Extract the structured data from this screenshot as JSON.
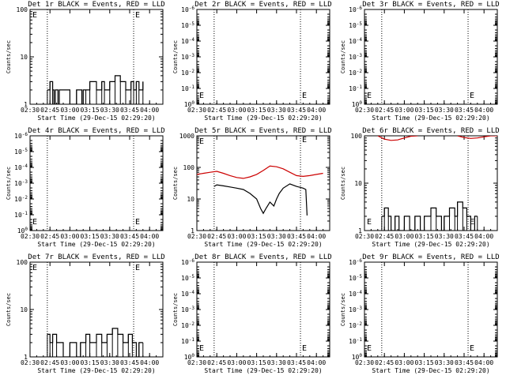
{
  "window_title": "",
  "axis_label_y": "Counts/sec",
  "axis_label_x": "Start Time (29-Dec-15 02:29:20)",
  "colors": {
    "events": "#000000",
    "lld": "#cc0000",
    "background": "#ffffff"
  },
  "chart_data": [
    {
      "type": "line",
      "title": "Det 1r BLACK = Events, RED = LLD",
      "xlabel": "Start Time (29-Dec-15 02:29:20)",
      "ylabel": "Counts/sec",
      "xlim": [
        "02:30",
        "04:10"
      ],
      "ylim": [
        1,
        100
      ],
      "yscale": "log",
      "x_ticks": [
        "02:30",
        "02:45",
        "03:00",
        "03:15",
        "03:30",
        "03:45",
        "04:00"
      ],
      "y_ticks": [
        "1",
        "10",
        "100"
      ],
      "markers": [
        "02:43",
        "03:48"
      ],
      "marker_label": "E",
      "series": [
        {
          "color": "#000000",
          "style": "step",
          "x": [
            "02:43",
            "02:45",
            "02:47",
            "02:48",
            "02:49",
            "02:51",
            "02:52",
            "03:00",
            "03:05",
            "03:09",
            "03:10",
            "03:12",
            "03:15",
            "03:20",
            "03:24",
            "03:26",
            "03:30",
            "03:34",
            "03:38",
            "03:42",
            "03:46",
            "03:48",
            "03:50",
            "03:52",
            "03:55"
          ],
          "y": [
            2,
            3,
            2,
            1,
            2,
            1,
            2,
            1,
            2,
            1,
            2,
            2,
            3,
            2,
            3,
            2,
            3,
            4,
            3,
            2,
            3,
            2,
            3,
            2,
            3
          ]
        }
      ]
    },
    {
      "type": "line",
      "title": "Det 2r BLACK = Events, RED = LLD",
      "xlabel": "Start Time (29-Dec-15 02:29:20)",
      "ylabel": "Counts/sec",
      "xlim": [
        "02:30",
        "04:10"
      ],
      "ylim": [
        1,
        1e-06
      ],
      "yscale": "log",
      "x_ticks": [
        "02:30",
        "02:45",
        "03:00",
        "03:15",
        "03:30",
        "03:45",
        "04:00"
      ],
      "y_ticks": [
        "10^0",
        "10^-1",
        "10^-2",
        "10^-3",
        "10^-4",
        "10^-5",
        "10^-6"
      ],
      "markers": [
        "02:43",
        "03:48"
      ],
      "marker_label": "E",
      "series": []
    },
    {
      "type": "line",
      "title": "Det 3r BLACK = Events, RED = LLD",
      "xlabel": "Start Time (29-Dec-15 02:29:20)",
      "ylabel": "Counts/sec",
      "xlim": [
        "02:30",
        "04:10"
      ],
      "ylim": [
        1,
        1e-06
      ],
      "yscale": "log",
      "x_ticks": [
        "02:30",
        "02:45",
        "03:00",
        "03:15",
        "03:30",
        "03:45",
        "04:00"
      ],
      "y_ticks": [
        "10^0",
        "10^-1",
        "10^-2",
        "10^-3",
        "10^-4",
        "10^-5",
        "10^-6"
      ],
      "markers": [
        "02:43",
        "03:48"
      ],
      "marker_label": "E",
      "series": []
    },
    {
      "type": "line",
      "title": "Det 4r BLACK = Events, RED = LLD",
      "xlabel": "Start Time (29-Dec-15 02:29:20)",
      "ylabel": "Counts/sec",
      "xlim": [
        "02:30",
        "04:10"
      ],
      "ylim": [
        1,
        1e-06
      ],
      "yscale": "log",
      "x_ticks": [
        "02:30",
        "02:45",
        "03:00",
        "03:15",
        "03:30",
        "03:45",
        "04:00"
      ],
      "y_ticks": [
        "10^0",
        "10^-1",
        "10^-2",
        "10^-3",
        "10^-4",
        "10^-5",
        "10^-6"
      ],
      "markers": [
        "02:43",
        "03:48"
      ],
      "marker_label": "E",
      "series": []
    },
    {
      "type": "line",
      "title": "Det 5r BLACK = Events, RED = LLD",
      "xlabel": "Start Time (29-Dec-15 02:29:20)",
      "ylabel": "Counts/sec",
      "xlim": [
        "02:30",
        "04:10"
      ],
      "ylim": [
        1,
        1000
      ],
      "yscale": "log",
      "x_ticks": [
        "02:30",
        "02:45",
        "03:00",
        "03:15",
        "03:30",
        "03:45",
        "04:00"
      ],
      "y_ticks": [
        "1",
        "10",
        "100",
        "1000"
      ],
      "markers": [
        "02:43",
        "03:48"
      ],
      "marker_label": "E",
      "series": [
        {
          "color": "#cc0000",
          "style": "line",
          "x": [
            "02:30",
            "02:35",
            "02:40",
            "02:45",
            "02:50",
            "02:55",
            "03:00",
            "03:05",
            "03:10",
            "03:15",
            "03:20",
            "03:25",
            "03:30",
            "03:35",
            "03:40",
            "03:45",
            "03:50",
            "03:55",
            "04:00",
            "04:05"
          ],
          "y": [
            60,
            65,
            70,
            75,
            65,
            55,
            48,
            45,
            50,
            60,
            80,
            110,
            105,
            90,
            70,
            55,
            52,
            55,
            60,
            65
          ]
        },
        {
          "color": "#000000",
          "style": "line",
          "x": [
            "02:43",
            "02:45",
            "02:50",
            "02:55",
            "03:00",
            "03:05",
            "03:10",
            "03:15",
            "03:18",
            "03:20",
            "03:22",
            "03:25",
            "03:28",
            "03:30",
            "03:32",
            "03:35",
            "03:40",
            "03:45",
            "03:50",
            "03:52",
            "03:53"
          ],
          "y": [
            25,
            28,
            26,
            24,
            22,
            20,
            15,
            10,
            5,
            3.5,
            5,
            8,
            6,
            10,
            15,
            22,
            30,
            25,
            22,
            20,
            3
          ]
        }
      ]
    },
    {
      "type": "line",
      "title": "Det 6r BLACK = Events, RED = LLD",
      "xlabel": "Start Time (29-Dec-15 02:29:20)",
      "ylabel": "Counts/sec",
      "xlim": [
        "02:30",
        "04:10"
      ],
      "ylim": [
        1,
        100
      ],
      "yscale": "log",
      "x_ticks": [
        "02:30",
        "02:45",
        "03:00",
        "03:15",
        "03:30",
        "03:45",
        "04:00"
      ],
      "y_ticks": [
        "1",
        "10",
        "100"
      ],
      "markers": [
        "02:43",
        "03:48"
      ],
      "marker_label": "E",
      "series": [
        {
          "color": "#cc0000",
          "style": "line",
          "x": [
            "02:40",
            "02:45",
            "02:50",
            "02:55",
            "03:00",
            "03:05",
            "03:10"
          ],
          "y": [
            100,
            85,
            80,
            82,
            90,
            98,
            100
          ]
        },
        {
          "color": "#cc0000",
          "style": "line",
          "x": [
            "03:40",
            "03:45",
            "03:50",
            "03:55",
            "04:00",
            "04:05",
            "04:10"
          ],
          "y": [
            100,
            92,
            88,
            90,
            95,
            100,
            100
          ]
        },
        {
          "color": "#000000",
          "style": "step",
          "x": [
            "02:43",
            "02:45",
            "02:48",
            "02:50",
            "02:53",
            "02:56",
            "03:00",
            "03:04",
            "03:08",
            "03:12",
            "03:15",
            "03:20",
            "03:24",
            "03:28",
            "03:30",
            "03:34",
            "03:38",
            "03:40",
            "03:44",
            "03:47",
            "03:50",
            "03:53",
            "03:55"
          ],
          "y": [
            2,
            3,
            2,
            1,
            2,
            1,
            2,
            1,
            2,
            1,
            2,
            3,
            2,
            1,
            2,
            3,
            2,
            4,
            3,
            2,
            1,
            2,
            2
          ]
        }
      ]
    },
    {
      "type": "line",
      "title": "Det 7r BLACK = Events, RED = LLD",
      "xlabel": "Start Time (29-Dec-15 02:29:20)",
      "ylabel": "Counts/sec",
      "xlim": [
        "02:30",
        "04:10"
      ],
      "ylim": [
        1,
        100
      ],
      "yscale": "log",
      "x_ticks": [
        "02:30",
        "02:45",
        "03:00",
        "03:15",
        "03:30",
        "03:45",
        "04:00"
      ],
      "y_ticks": [
        "1",
        "10",
        "100"
      ],
      "markers": [
        "02:43",
        "03:48"
      ],
      "marker_label": "E",
      "series": [
        {
          "color": "#000000",
          "style": "step",
          "x": [
            "02:43",
            "02:45",
            "02:47",
            "02:50",
            "02:55",
            "03:00",
            "03:05",
            "03:08",
            "03:12",
            "03:15",
            "03:20",
            "03:24",
            "03:28",
            "03:32",
            "03:36",
            "03:40",
            "03:44",
            "03:47",
            "03:50",
            "03:52",
            "03:55"
          ],
          "y": [
            3,
            2,
            3,
            2,
            1,
            2,
            1,
            2,
            3,
            2,
            3,
            2,
            3,
            4,
            3,
            2,
            3,
            2,
            1,
            2,
            2
          ]
        }
      ]
    },
    {
      "type": "line",
      "title": "Det 8r BLACK = Events, RED = LLD",
      "xlabel": "Start Time (29-Dec-15 02:29:20)",
      "ylabel": "Counts/sec",
      "xlim": [
        "02:30",
        "04:10"
      ],
      "ylim": [
        1,
        1e-06
      ],
      "yscale": "log",
      "x_ticks": [
        "02:30",
        "02:45",
        "03:00",
        "03:15",
        "03:30",
        "03:45",
        "04:00"
      ],
      "y_ticks": [
        "10^0",
        "10^-1",
        "10^-2",
        "10^-3",
        "10^-4",
        "10^-5",
        "10^-6"
      ],
      "markers": [
        "02:43",
        "03:48"
      ],
      "marker_label": "E",
      "series": []
    },
    {
      "type": "line",
      "title": "Det 9r BLACK = Events, RED = LLD",
      "xlabel": "Start Time (29-Dec-15 02:29:20)",
      "ylabel": "Counts/sec",
      "xlim": [
        "02:30",
        "04:10"
      ],
      "ylim": [
        1,
        1e-06
      ],
      "yscale": "log",
      "x_ticks": [
        "02:30",
        "02:45",
        "03:00",
        "03:15",
        "03:30",
        "03:45",
        "04:00"
      ],
      "y_ticks": [
        "10^0",
        "10^-1",
        "10^-2",
        "10^-3",
        "10^-4",
        "10^-5",
        "10^-6"
      ],
      "markers": [
        "02:43",
        "03:48"
      ],
      "marker_label": "E",
      "series": []
    }
  ]
}
